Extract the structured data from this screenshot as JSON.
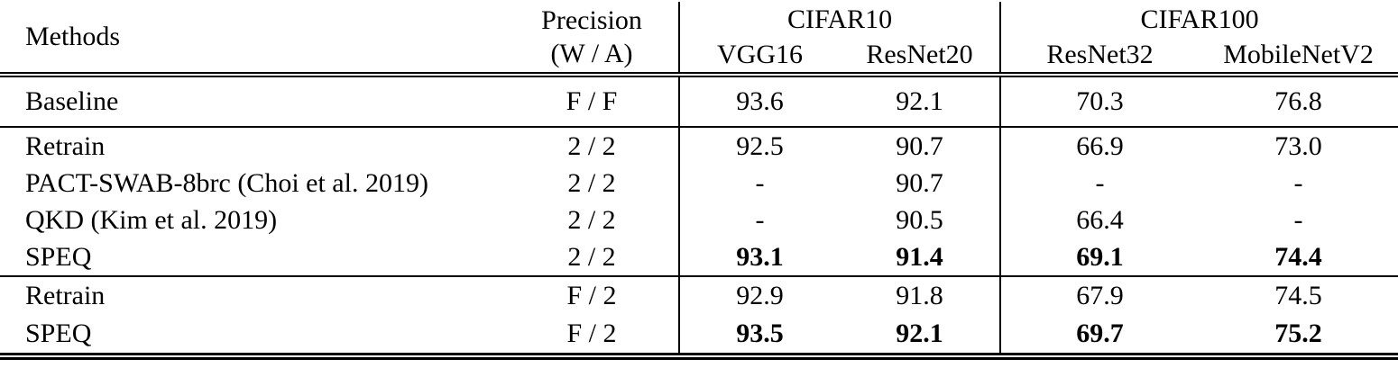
{
  "table": {
    "header": {
      "methods": "Methods",
      "precision_line1": "Precision",
      "precision_line2": "(W / A)",
      "group_cifar10": "CIFAR10",
      "group_cifar100": "CIFAR100",
      "col_vgg16": "VGG16",
      "col_resnet20": "ResNet20",
      "col_resnet32": "ResNet32",
      "col_mobilenetv2": "MobileNetV2"
    },
    "baseline": {
      "method": "Baseline",
      "precision": "F / F",
      "vgg16": "93.6",
      "resnet20": "92.1",
      "resnet32": "70.3",
      "mobilenetv2": "76.8"
    },
    "group_2bit": {
      "rows": [
        {
          "method": "Retrain",
          "precision": "2 / 2",
          "vgg16": "92.5",
          "resnet20": "90.7",
          "resnet32": "66.9",
          "mobilenetv2": "73.0",
          "bold": false
        },
        {
          "method": "PACT-SWAB-8brc (Choi et al. 2019)",
          "precision": "2 / 2",
          "vgg16": "-",
          "resnet20": "90.7",
          "resnet32": "-",
          "mobilenetv2": "-",
          "bold": false
        },
        {
          "method": "QKD (Kim et al. 2019)",
          "precision": "2 / 2",
          "vgg16": "-",
          "resnet20": "90.5",
          "resnet32": "66.4",
          "mobilenetv2": "-",
          "bold": false
        },
        {
          "method": "SPEQ",
          "precision": "2 / 2",
          "vgg16": "93.1",
          "resnet20": "91.4",
          "resnet32": "69.1",
          "mobilenetv2": "74.4",
          "bold": true
        }
      ]
    },
    "group_f2": {
      "rows": [
        {
          "method": "Retrain",
          "precision": "F / 2",
          "vgg16": "92.9",
          "resnet20": "91.8",
          "resnet32": "67.9",
          "mobilenetv2": "74.5",
          "bold": false
        },
        {
          "method": "SPEQ",
          "precision": "F / 2",
          "vgg16": "93.5",
          "resnet20": "92.1",
          "resnet32": "69.7",
          "mobilenetv2": "75.2",
          "bold": true
        }
      ]
    },
    "colors": {
      "text": "#000000",
      "background": "#ffffff",
      "rule": "#000000"
    }
  }
}
